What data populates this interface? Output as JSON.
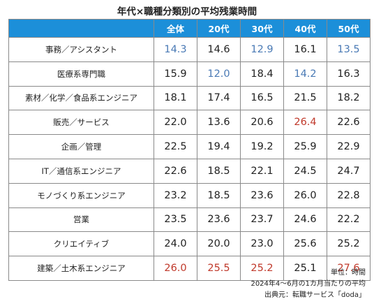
{
  "colors": {
    "header_bg": "#1c8fd9",
    "header_text": "#ffffff",
    "low": "#4a7ab5",
    "high": "#c0392b",
    "normal": "#222222"
  },
  "chart_data": {
    "type": "table",
    "title": "年代×職種分類別の平均残業時間",
    "columns": [
      "",
      "全体",
      "20代",
      "30代",
      "40代",
      "50代"
    ],
    "rows": [
      {
        "category": "事務／アシスタント",
        "values": [
          "14.3",
          "14.6",
          "12.9",
          "16.1",
          "13.5"
        ],
        "highlight": [
          "low",
          "",
          "low",
          "",
          "low"
        ]
      },
      {
        "category": "医療系専門職",
        "values": [
          "15.9",
          "12.0",
          "18.4",
          "14.2",
          "16.3"
        ],
        "highlight": [
          "",
          "low",
          "",
          "low",
          ""
        ]
      },
      {
        "category": "素材／化学／食品系エンジニア",
        "values": [
          "18.1",
          "17.4",
          "16.5",
          "21.5",
          "18.2"
        ],
        "highlight": [
          "",
          "",
          "",
          "",
          ""
        ]
      },
      {
        "category": "販売／サービス",
        "values": [
          "22.0",
          "13.6",
          "20.6",
          "26.4",
          "22.6"
        ],
        "highlight": [
          "",
          "",
          "",
          "high",
          ""
        ]
      },
      {
        "category": "企画／管理",
        "values": [
          "22.5",
          "19.4",
          "19.2",
          "25.9",
          "22.9"
        ],
        "highlight": [
          "",
          "",
          "",
          "",
          ""
        ]
      },
      {
        "category": "IT／通信系エンジニア",
        "values": [
          "22.6",
          "18.5",
          "22.1",
          "24.5",
          "24.7"
        ],
        "highlight": [
          "",
          "",
          "",
          "",
          ""
        ]
      },
      {
        "category": "モノづくり系エンジニア",
        "values": [
          "23.2",
          "18.5",
          "23.6",
          "26.0",
          "22.8"
        ],
        "highlight": [
          "",
          "",
          "",
          "",
          ""
        ]
      },
      {
        "category": "営業",
        "values": [
          "23.5",
          "23.6",
          "23.7",
          "24.6",
          "22.2"
        ],
        "highlight": [
          "",
          "",
          "",
          "",
          ""
        ]
      },
      {
        "category": "クリエイティブ",
        "values": [
          "24.0",
          "20.0",
          "23.0",
          "25.6",
          "25.2"
        ],
        "highlight": [
          "",
          "",
          "",
          "",
          ""
        ]
      },
      {
        "category": "建築／土木系エンジニア",
        "values": [
          "26.0",
          "25.5",
          "25.2",
          "25.1",
          "27.6"
        ],
        "highlight": [
          "high",
          "high",
          "high",
          "",
          "high"
        ]
      }
    ],
    "notes": [
      "単位：時間",
      "2024年4～6月の1カ月当たりの平均",
      "出典元：転職サービス「doda」"
    ]
  }
}
